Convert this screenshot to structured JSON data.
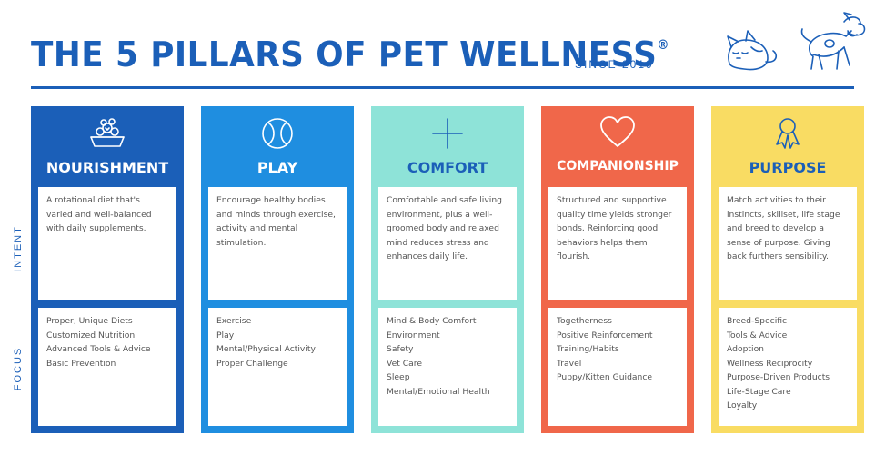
{
  "header": {
    "title": "THE 5 PILLARS OF PET WELLNESS",
    "registered": "®",
    "since": "SINCE 2019"
  },
  "side_labels": {
    "intent": "INTENT",
    "focus": "FOCUS"
  },
  "colors": {
    "navy": "#1b5fb8",
    "blue": "#1f8ee0",
    "teal": "#8ee3d8",
    "coral": "#f0674a",
    "yellow": "#f9dc63"
  },
  "pillars": [
    {
      "name": "NOURISHMENT",
      "icon": "food-bowl-icon",
      "intent": "A rotational diet that's varied and well-balanced with daily supplements.",
      "focus": [
        "Proper, Unique Diets",
        "Customized Nutrition",
        "Advanced Tools & Advice",
        "Basic Prevention"
      ]
    },
    {
      "name": "PLAY",
      "icon": "tennis-ball-icon",
      "intent": "Encourage healthy bodies and minds through exercise, activity and mental stimulation.",
      "focus": [
        "Exercise",
        "Play",
        "Mental/Physical Activity",
        "Proper Challenge"
      ]
    },
    {
      "name": "COMFORT",
      "icon": "plus-icon",
      "intent": "Comfortable and safe living environment, plus a well-groomed body and relaxed mind reduces stress and enhances daily life.",
      "focus": [
        "Mind & Body Comfort",
        "Environment",
        "Safety",
        "Vet Care",
        "Sleep",
        "Mental/Emotional Health"
      ]
    },
    {
      "name": "COMPANIONSHIP",
      "icon": "heart-icon",
      "intent": "Structured and supportive quality time yields stronger bonds. Reinforcing good behaviors helps them flourish.",
      "focus": [
        "Togetherness",
        "Positive Reinforcement",
        "Training/Habits",
        "Travel",
        "Puppy/Kitten Guidance"
      ]
    },
    {
      "name": "PURPOSE",
      "icon": "award-ribbon-icon",
      "intent": "Match activities to their instincts, skillset, life stage and breed to develop a sense of purpose. Giving back furthers sensibility.",
      "focus": [
        "Breed-Specific",
        "Tools & Advice",
        "Adoption",
        "Wellness Reciprocity",
        "Purpose-Driven Products",
        "Life-Stage Care",
        "Loyalty"
      ]
    }
  ]
}
